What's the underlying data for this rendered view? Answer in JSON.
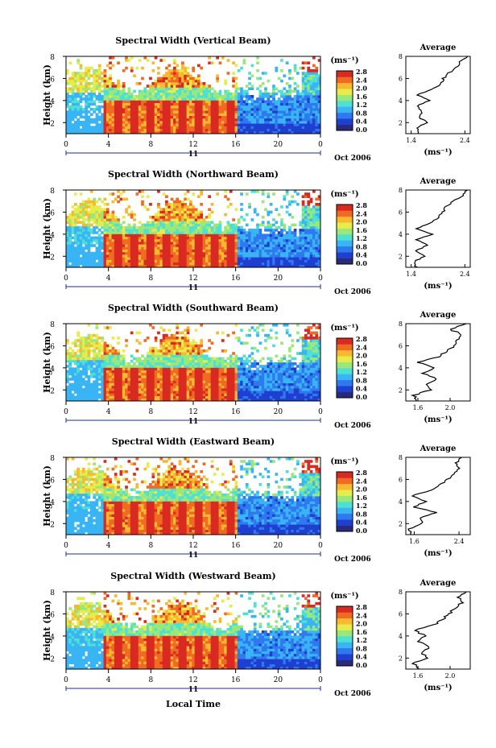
{
  "figure": {
    "xlabel_bottom": "Local Time",
    "date_label": "Oct 2006",
    "day_label": "11",
    "colorbar_unit_label": "(ms⁻¹)",
    "avg_title": "Average",
    "avg_unit_label": "(ms⁻¹)",
    "height_label": "Height (km)"
  },
  "colorbar": {
    "ticks": [
      "0.0",
      "0.4",
      "0.8",
      "1.2",
      "1.6",
      "2.0",
      "2.4",
      "2.8"
    ],
    "colors": [
      "#2a2a7a",
      "#1f3fd0",
      "#2f78f0",
      "#39b4f4",
      "#4fe0d4",
      "#9ae87a",
      "#e6ec4a",
      "#f8b830",
      "#f06a24",
      "#d82a20"
    ]
  },
  "chart_data": [
    {
      "type": "heatmap",
      "title": "Spectral Width (Vertical Beam)",
      "xlabel": "Local Time",
      "ylabel": "Height (km)",
      "x_ticks": [
        "0",
        "4",
        "8",
        "12",
        "16",
        "20",
        "0"
      ],
      "xlim": [
        0,
        24
      ],
      "y_ticks": [
        "2",
        "4",
        "6",
        "8"
      ],
      "ylim": [
        1,
        8
      ],
      "colorbar_label": "(ms⁻¹)",
      "colorbar_range": [
        0.0,
        2.8
      ],
      "average_profile": {
        "title": "Average",
        "xlabel": "(ms⁻¹)",
        "x_ticks": [
          "1.4",
          "2.4"
        ],
        "xlim": [
          1.3,
          2.5
        ],
        "y_ticks": [
          "2",
          "4",
          "6",
          "8"
        ],
        "heights": [
          1.0,
          1.5,
          2.0,
          2.5,
          3.0,
          3.5,
          4.0,
          4.5,
          5.0,
          5.5,
          6.0,
          6.5,
          7.0,
          7.5,
          8.0
        ],
        "values": [
          1.55,
          1.5,
          1.7,
          1.55,
          1.6,
          1.5,
          1.75,
          1.5,
          1.8,
          1.95,
          2.0,
          2.1,
          2.25,
          2.3,
          2.45
        ]
      }
    },
    {
      "type": "heatmap",
      "title": "Spectral Width (Northward Beam)",
      "xlabel": "Local Time",
      "ylabel": "Height (km)",
      "x_ticks": [
        "0",
        "4",
        "8",
        "12",
        "16",
        "20",
        "0"
      ],
      "xlim": [
        0,
        24
      ],
      "y_ticks": [
        "2",
        "4",
        "6",
        "8"
      ],
      "ylim": [
        1,
        8
      ],
      "colorbar_label": "(ms⁻¹)",
      "colorbar_range": [
        0.0,
        2.8
      ],
      "average_profile": {
        "title": "Average",
        "xlabel": "(ms⁻¹)",
        "x_ticks": [
          "1.4",
          "2.4"
        ],
        "xlim": [
          1.3,
          2.5
        ],
        "y_ticks": [
          "2",
          "4",
          "6",
          "8"
        ],
        "heights": [
          1.0,
          1.5,
          2.0,
          2.5,
          3.0,
          3.5,
          4.0,
          4.5,
          5.0,
          5.5,
          6.0,
          6.5,
          7.0,
          7.5,
          8.0
        ],
        "values": [
          1.5,
          1.45,
          1.65,
          1.5,
          1.7,
          1.5,
          1.8,
          1.5,
          1.75,
          1.9,
          2.0,
          2.05,
          2.2,
          2.35,
          2.45
        ]
      }
    },
    {
      "type": "heatmap",
      "title": "Spectral Width (Southward Beam)",
      "xlabel": "Local Time",
      "ylabel": "Height (km)",
      "x_ticks": [
        "0",
        "4",
        "8",
        "12",
        "16",
        "20",
        "0"
      ],
      "xlim": [
        0,
        24
      ],
      "y_ticks": [
        "2",
        "4",
        "6",
        "8"
      ],
      "ylim": [
        1,
        8
      ],
      "colorbar_label": "(ms⁻¹)",
      "colorbar_range": [
        0.0,
        2.8
      ],
      "average_profile": {
        "title": "Average",
        "xlabel": "(ms⁻¹)",
        "x_ticks": [
          "1.6",
          "2.0"
        ],
        "xlim": [
          1.45,
          2.25
        ],
        "y_ticks": [
          "2",
          "4",
          "6",
          "8"
        ],
        "heights": [
          1.0,
          1.5,
          2.0,
          2.5,
          3.0,
          3.5,
          4.0,
          4.5,
          5.0,
          5.5,
          6.0,
          6.5,
          7.0,
          7.5,
          8.0
        ],
        "values": [
          1.6,
          1.55,
          1.75,
          1.7,
          1.85,
          1.65,
          1.8,
          1.6,
          1.85,
          1.95,
          2.05,
          2.1,
          2.15,
          2.0,
          2.2
        ]
      }
    },
    {
      "type": "heatmap",
      "title": "Spectral Width (Eastward Beam)",
      "xlabel": "Local Time",
      "ylabel": "Height (km)",
      "x_ticks": [
        "0",
        "4",
        "8",
        "12",
        "16",
        "20",
        "0"
      ],
      "xlim": [
        0,
        24
      ],
      "y_ticks": [
        "2",
        "4",
        "6",
        "8"
      ],
      "ylim": [
        1,
        8
      ],
      "colorbar_label": "(ms⁻¹)",
      "colorbar_range": [
        0.0,
        2.8
      ],
      "average_profile": {
        "title": "Average",
        "xlabel": "(ms⁻¹)",
        "x_ticks": [
          "1.6",
          "2.4"
        ],
        "xlim": [
          1.45,
          2.6
        ],
        "y_ticks": [
          "2",
          "4",
          "6",
          "8"
        ],
        "heights": [
          1.0,
          1.5,
          2.0,
          2.5,
          3.0,
          3.5,
          4.0,
          4.5,
          5.0,
          5.5,
          6.0,
          6.5,
          7.0,
          7.5,
          8.0
        ],
        "values": [
          1.55,
          1.5,
          1.75,
          1.7,
          2.0,
          1.6,
          1.8,
          1.55,
          1.9,
          2.05,
          2.2,
          2.3,
          2.4,
          2.35,
          2.45
        ]
      }
    },
    {
      "type": "heatmap",
      "title": "Spectral Width (Westward Beam)",
      "xlabel": "Local Time",
      "ylabel": "Height (km)",
      "x_ticks": [
        "0",
        "4",
        "8",
        "12",
        "16",
        "20",
        "0"
      ],
      "xlim": [
        0,
        24
      ],
      "y_ticks": [
        "2",
        "4",
        "6",
        "8"
      ],
      "ylim": [
        1,
        8
      ],
      "colorbar_label": "(ms⁻¹)",
      "colorbar_range": [
        0.0,
        2.8
      ],
      "average_profile": {
        "title": "Average",
        "xlabel": "(ms⁻¹)",
        "x_ticks": [
          "1.6",
          "2.0"
        ],
        "xlim": [
          1.45,
          2.25
        ],
        "y_ticks": [
          "2",
          "4",
          "6",
          "8"
        ],
        "heights": [
          1.0,
          1.5,
          2.0,
          2.5,
          3.0,
          3.5,
          4.0,
          4.5,
          5.0,
          5.5,
          6.0,
          6.5,
          7.0,
          7.5,
          8.0
        ],
        "values": [
          1.6,
          1.55,
          1.7,
          1.65,
          1.75,
          1.6,
          1.7,
          1.55,
          1.8,
          1.9,
          2.0,
          2.05,
          2.15,
          2.1,
          2.2
        ]
      }
    }
  ]
}
